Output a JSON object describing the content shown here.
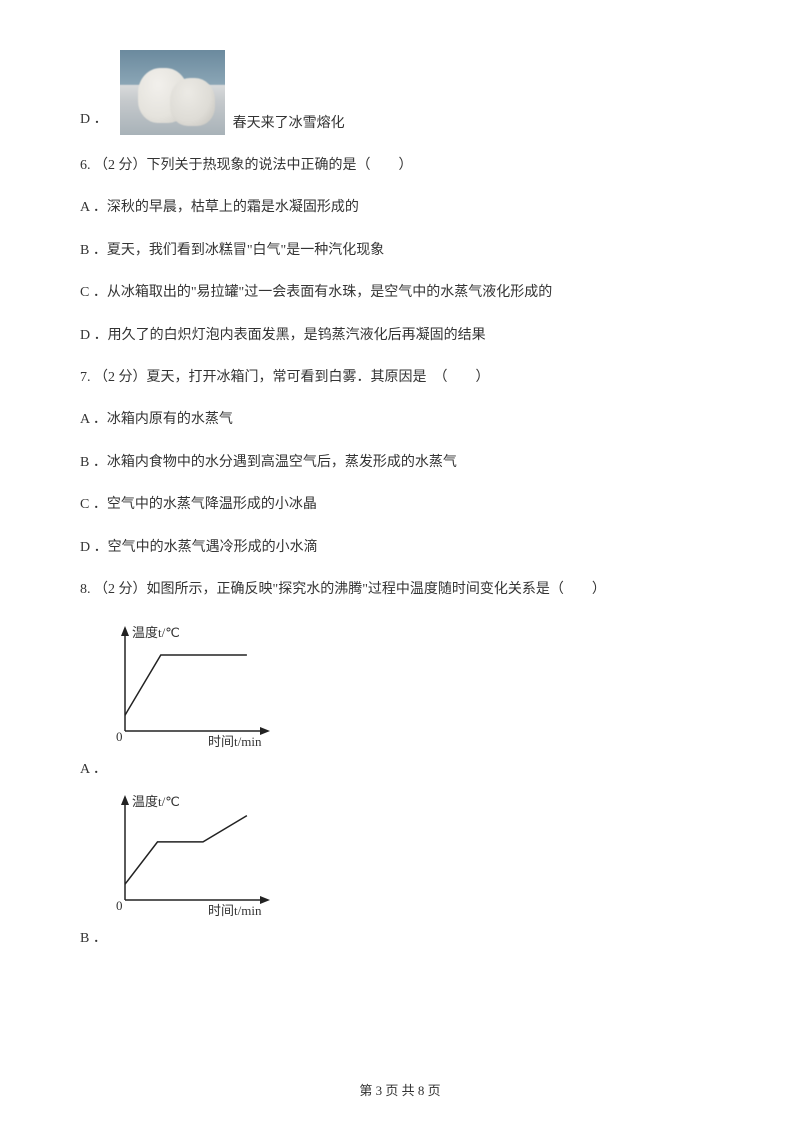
{
  "optD": {
    "letter": "D ．",
    "text": "春天来了冰雪熔化"
  },
  "q6": {
    "stem": "6.  （2 分）下列关于热现象的说法中正确的是（　　）",
    "A": "A ．深秋的早晨，枯草上的霜是水凝固形成的",
    "B": "B ．夏天，我们看到冰糕冒\"白气\"是一种汽化现象",
    "C": "C ．从冰箱取出的\"易拉罐\"过一会表面有水珠，是空气中的水蒸气液化形成的",
    "D": "D ．用久了的白炽灯泡内表面发黑，是钨蒸汽液化后再凝固的结果"
  },
  "q7": {
    "stem": "7.  （2 分）夏天，打开冰箱门，常可看到白雾．其原因是　（　　）",
    "A": "A ．冰箱内原有的水蒸气",
    "B": "B ．冰箱内食物中的水分遇到高温空气后，蒸发形成的水蒸气",
    "C": "C ．空气中的水蒸气降温形成的小冰晶",
    "D": "D ．空气中的水蒸气遇冷形成的小水滴"
  },
  "q8": {
    "stem": "8.  （2 分）如图所示，正确反映\"探究水的沸腾\"过程中温度随时间变化关系是（　　）",
    "A": "A ．",
    "B": "B ．",
    "chartA": {
      "type": "line",
      "xlabel": "时间t/min",
      "ylabel": "温度t/℃",
      "background_color": "#ffffff",
      "line_color": "#222222",
      "axis_color": "#222222",
      "font_size": 13,
      "points": [
        [
          0,
          15
        ],
        [
          22,
          72
        ],
        [
          75,
          72
        ]
      ],
      "xlim": [
        0,
        80
      ],
      "ylim": [
        0,
        90
      ]
    },
    "chartB": {
      "type": "line",
      "xlabel": "时间t/min",
      "ylabel": "温度t/℃",
      "background_color": "#ffffff",
      "line_color": "#222222",
      "axis_color": "#222222",
      "font_size": 13,
      "points": [
        [
          0,
          15
        ],
        [
          20,
          55
        ],
        [
          48,
          55
        ],
        [
          75,
          80
        ]
      ],
      "xlim": [
        0,
        80
      ],
      "ylim": [
        0,
        90
      ]
    }
  },
  "footer": {
    "text": "第 3 页 共 8 页"
  }
}
